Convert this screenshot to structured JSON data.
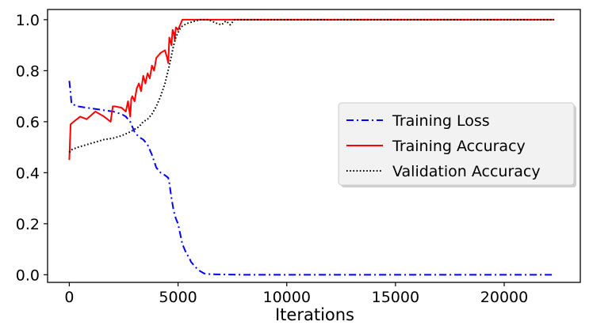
{
  "chart_data": {
    "type": "line",
    "title": "",
    "xlabel": "Iterations",
    "ylabel": "",
    "xlim": [
      -1000,
      23500
    ],
    "ylim": [
      -0.03,
      1.04
    ],
    "x_ticks": [
      0,
      5000,
      10000,
      15000,
      20000
    ],
    "y_ticks": [
      0.0,
      0.2,
      0.4,
      0.6,
      0.8,
      1.0
    ],
    "x_tick_labels": [
      "0",
      "5000",
      "10000",
      "15000",
      "20000"
    ],
    "y_tick_labels": [
      "0.0",
      "0.2",
      "0.4",
      "0.6",
      "0.8",
      "1.0"
    ],
    "grid": false,
    "legend_position": "center-right",
    "series": [
      {
        "name": "Training Loss",
        "color": "#0000ff",
        "linestyle": "dashdot",
        "x": [
          0,
          50,
          100,
          400,
          800,
          1200,
          1600,
          2000,
          2400,
          2600,
          2800,
          3000,
          3200,
          3400,
          3600,
          3800,
          4000,
          4200,
          4400,
          4550,
          4600,
          4700,
          4800,
          4900,
          5000,
          5100,
          5200,
          5300,
          5400,
          5500,
          5600,
          5800,
          6000,
          6200,
          6500,
          7000,
          8000,
          10000,
          15000,
          20000,
          22300
        ],
        "y": [
          0.76,
          0.72,
          0.67,
          0.66,
          0.655,
          0.65,
          0.645,
          0.64,
          0.63,
          0.62,
          0.6,
          0.56,
          0.54,
          0.53,
          0.51,
          0.47,
          0.42,
          0.4,
          0.39,
          0.38,
          0.36,
          0.3,
          0.25,
          0.22,
          0.2,
          0.16,
          0.12,
          0.1,
          0.08,
          0.07,
          0.05,
          0.03,
          0.015,
          0.005,
          0.002,
          0.001,
          0.0,
          0.0,
          0.0,
          0.0,
          0.0
        ]
      },
      {
        "name": "Training Accuracy",
        "color": "#ff0000",
        "linestyle": "solid",
        "x": [
          0,
          30,
          60,
          200,
          500,
          800,
          1200,
          1600,
          1900,
          2000,
          2100,
          2400,
          2600,
          2700,
          2800,
          2850,
          2900,
          3000,
          3100,
          3200,
          3300,
          3400,
          3500,
          3600,
          3700,
          3800,
          3900,
          4000,
          4200,
          4400,
          4500,
          4550,
          4600,
          4700,
          4750,
          4800,
          4850,
          4900,
          5000,
          5100,
          5200,
          6000,
          8000,
          10000,
          15000,
          20000,
          22300
        ],
        "y": [
          0.45,
          0.52,
          0.59,
          0.6,
          0.62,
          0.61,
          0.64,
          0.62,
          0.6,
          0.66,
          0.66,
          0.655,
          0.64,
          0.68,
          0.62,
          0.69,
          0.7,
          0.68,
          0.73,
          0.75,
          0.72,
          0.78,
          0.75,
          0.79,
          0.77,
          0.82,
          0.8,
          0.85,
          0.87,
          0.88,
          0.85,
          0.83,
          0.93,
          0.9,
          0.96,
          0.95,
          0.92,
          0.97,
          0.96,
          0.98,
          1.0,
          1.0,
          1.0,
          1.0,
          1.0,
          1.0,
          1.0
        ]
      },
      {
        "name": "Validation Accuracy",
        "color": "#000000",
        "linestyle": "dotted",
        "x": [
          0,
          100,
          400,
          800,
          1200,
          1600,
          2000,
          2400,
          2800,
          3000,
          3200,
          3400,
          3600,
          3800,
          4000,
          4200,
          4400,
          4600,
          4700,
          4800,
          4900,
          5000,
          5100,
          5200,
          5300,
          5400,
          5600,
          5800,
          6000,
          6400,
          6800,
          7000,
          7200,
          7400,
          7600,
          8000,
          10000,
          15000,
          20000,
          22300
        ],
        "y": [
          0.48,
          0.49,
          0.5,
          0.51,
          0.52,
          0.53,
          0.535,
          0.545,
          0.56,
          0.57,
          0.58,
          0.6,
          0.61,
          0.63,
          0.66,
          0.7,
          0.75,
          0.82,
          0.86,
          0.9,
          0.93,
          0.95,
          0.965,
          0.975,
          0.98,
          0.985,
          0.99,
          0.995,
          1.0,
          1.0,
          0.985,
          0.98,
          0.995,
          0.98,
          1.0,
          1.0,
          1.0,
          1.0,
          1.0,
          1.0
        ]
      }
    ]
  }
}
